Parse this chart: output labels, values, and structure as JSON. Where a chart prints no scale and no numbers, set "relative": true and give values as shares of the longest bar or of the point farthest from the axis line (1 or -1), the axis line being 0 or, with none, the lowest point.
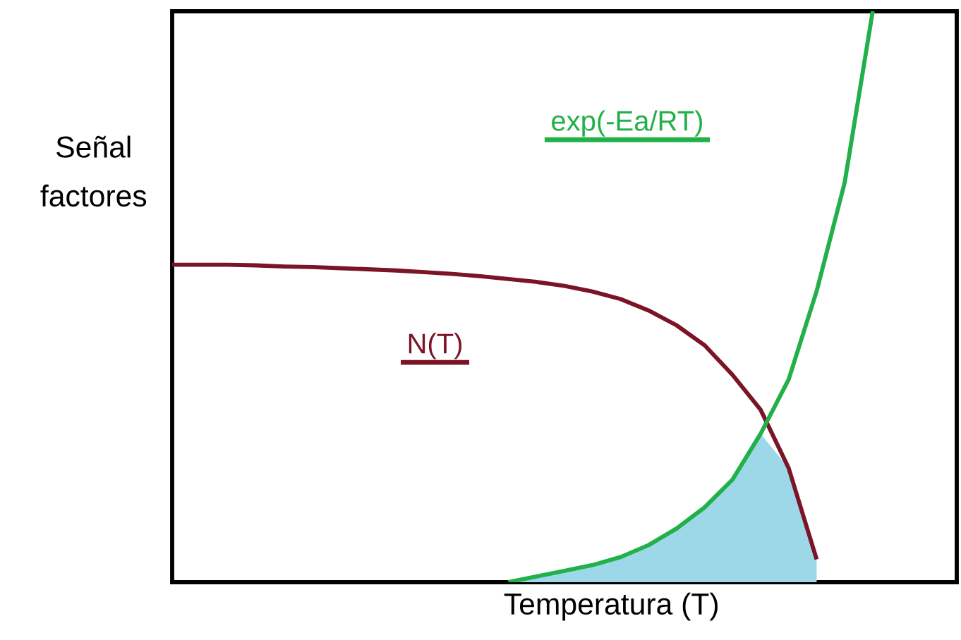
{
  "chart_data": {
    "type": "line",
    "relative": true,
    "xlabel": "Temperatura (T)",
    "ylabel": "Señal\nfactores",
    "categories": [
      null,
      null,
      null,
      null,
      null,
      null,
      null,
      null,
      null,
      null,
      null,
      null,
      null,
      null,
      null,
      null,
      null,
      null,
      null,
      null,
      null,
      null,
      null,
      null,
      null,
      null,
      null,
      null,
      null
    ],
    "series": [
      {
        "type": "area",
        "color": "#9dd8e8",
        "values": [
          null,
          null,
          null,
          null,
          null,
          null,
          null,
          null,
          null,
          null,
          null,
          null,
          0,
          0.01,
          0.02,
          0.03,
          0.044,
          0.065,
          0.094,
          0.131,
          0.18,
          0.26,
          0.2,
          0.04,
          null,
          null,
          null,
          null,
          null
        ]
      },
      {
        "name": "N(T)",
        "color": "#7b1426",
        "values": [
          0.556,
          0.556,
          0.556,
          0.555,
          0.553,
          0.552,
          0.55,
          0.548,
          0.546,
          0.543,
          0.54,
          0.536,
          0.531,
          0.526,
          0.519,
          0.509,
          0.496,
          0.476,
          0.45,
          0.415,
          0.363,
          0.302,
          0.2,
          0.04,
          null,
          null,
          null,
          null,
          null
        ]
      },
      {
        "name": "exp(-Ea/RT)",
        "color": "#22b04a",
        "values": [
          null,
          null,
          null,
          null,
          null,
          null,
          null,
          null,
          null,
          null,
          null,
          null,
          0,
          0.01,
          0.02,
          0.03,
          0.044,
          0.065,
          0.094,
          0.131,
          0.18,
          0.26,
          0.355,
          0.51,
          0.7,
          1.0,
          null,
          null,
          null
        ]
      }
    ]
  }
}
